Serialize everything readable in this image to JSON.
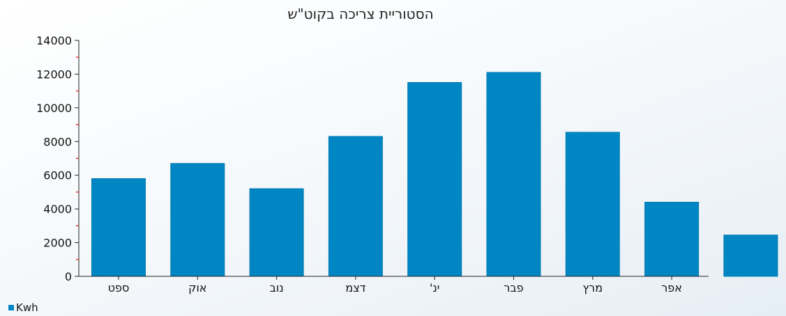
{
  "chart_data": {
    "type": "bar",
    "title": "הסטוריית צריכה בקוט\"ש",
    "categories": [
      "ספט",
      "אוק",
      "נוב",
      "דצמ",
      "ינ'",
      "פבר",
      "מרץ",
      "אפר",
      ""
    ],
    "series": [
      {
        "name": "Kwh",
        "values": [
          5800,
          6700,
          5200,
          8300,
          11500,
          12100,
          8550,
          4400,
          2450
        ],
        "color": "#0086c3"
      }
    ],
    "ylim": [
      0,
      14000
    ],
    "yticks": [
      0,
      2000,
      4000,
      6000,
      8000,
      10000,
      12000,
      14000
    ],
    "minor_tick_color": "#e03a2f",
    "grid": false,
    "legend_position": "bottom-left"
  }
}
